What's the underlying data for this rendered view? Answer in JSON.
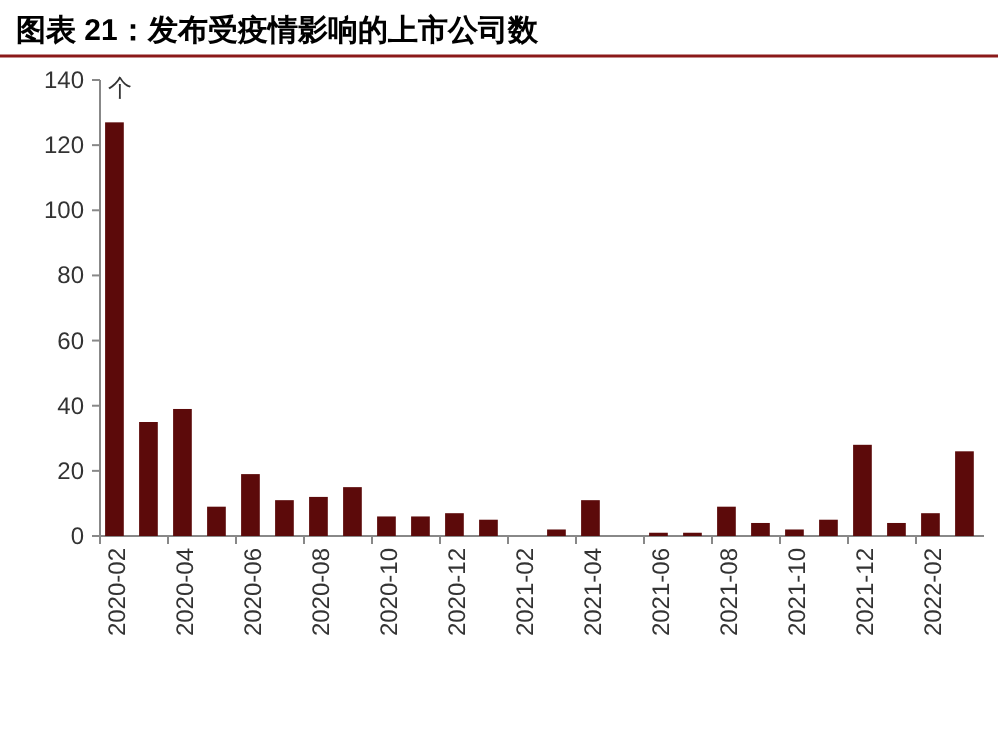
{
  "chart_data": {
    "type": "bar",
    "title": "图表 21：发布受疫情影响的上市公司数",
    "ylabel": "个",
    "categories": [
      "2020-02",
      null,
      "2020-04",
      null,
      "2020-06",
      null,
      "2020-08",
      null,
      "2020-10",
      null,
      "2020-12",
      null,
      "2021-02",
      null,
      "2021-04",
      null,
      "2021-06",
      null,
      "2021-08",
      null,
      "2021-10",
      null,
      "2021-12",
      null,
      "2022-02",
      null
    ],
    "values": [
      127,
      35,
      39,
      9,
      19,
      11,
      12,
      15,
      6,
      6,
      7,
      5,
      0,
      2,
      11,
      0,
      1,
      1,
      9,
      4,
      2,
      5,
      28,
      4,
      7,
      26
    ],
    "color": "#5c0a0a",
    "ylim": [
      0,
      140
    ],
    "yticks": [
      0,
      20,
      40,
      60,
      80,
      100,
      120,
      140
    ]
  }
}
